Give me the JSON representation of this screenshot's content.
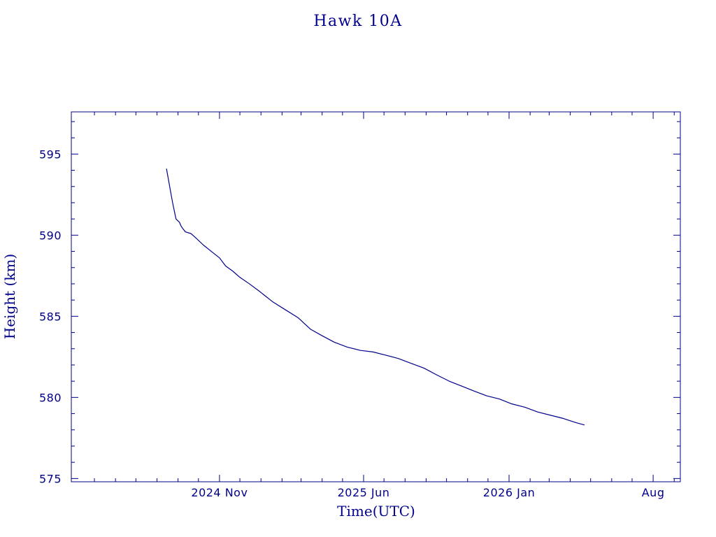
{
  "colors": {
    "ink": "#00008b",
    "background": "#ffffff"
  },
  "chart_data": {
    "type": "line",
    "title": "Hawk 10A",
    "xlabel": "Time(UTC)",
    "ylabel": "Height (km)",
    "x_scale": "date",
    "xlim": [
      "2024-03-28",
      "2026-09-10"
    ],
    "ylim": [
      574.8,
      597.6
    ],
    "x_ticks": [
      {
        "date": "2024-11-01",
        "label": "2024 Nov"
      },
      {
        "date": "2025-06-01",
        "label": "2025 Jun"
      },
      {
        "date": "2026-01-01",
        "label": "2026 Jan"
      },
      {
        "date": "2026-08-01",
        "label": "Aug"
      }
    ],
    "x_minor_ticks": [
      "2024-05-01",
      "2024-06-01",
      "2024-07-01",
      "2024-08-01",
      "2024-09-01",
      "2024-10-01",
      "2024-11-01",
      "2024-12-01",
      "2025-01-01",
      "2025-02-01",
      "2025-03-01",
      "2025-04-01",
      "2025-05-01",
      "2025-06-01",
      "2025-07-01",
      "2025-08-01",
      "2025-09-01",
      "2025-10-01",
      "2025-11-01",
      "2025-12-01",
      "2026-01-01",
      "2026-02-01",
      "2026-03-01",
      "2026-04-01",
      "2026-05-01",
      "2026-06-01",
      "2026-07-01",
      "2026-08-01",
      "2026-09-01"
    ],
    "x_major_every_months": 7,
    "y_ticks": [
      575,
      580,
      585,
      590,
      595
    ],
    "y_minor_step": 1,
    "grid": false,
    "legend": "none",
    "series": [
      {
        "x": [
          "2024-08-15",
          "2024-08-24",
          "2024-08-29",
          "2024-09-03",
          "2024-09-05",
          "2024-09-08",
          "2024-09-12",
          "2024-09-20",
          "2024-09-28",
          "2024-10-08",
          "2024-10-20",
          "2024-11-01",
          "2024-11-10",
          "2024-11-20",
          "2024-12-01",
          "2024-12-15",
          "2024-12-31",
          "2025-01-18",
          "2025-02-06",
          "2025-02-25",
          "2025-03-15",
          "2025-04-01",
          "2025-04-19",
          "2025-05-08",
          "2025-05-27",
          "2025-06-15",
          "2025-07-04",
          "2025-07-22",
          "2025-08-10",
          "2025-08-29",
          "2025-09-16",
          "2025-10-05",
          "2025-10-23",
          "2025-11-10",
          "2025-11-29",
          "2025-12-18",
          "2026-01-05",
          "2026-01-24",
          "2026-02-12",
          "2026-03-03",
          "2026-03-22",
          "2026-04-09",
          "2026-04-22"
        ],
        "y": [
          594.1,
          592.0,
          591.0,
          590.8,
          590.6,
          590.4,
          590.2,
          590.1,
          589.8,
          589.4,
          589.0,
          588.6,
          588.1,
          587.8,
          587.4,
          587.0,
          586.5,
          585.9,
          585.4,
          584.9,
          584.2,
          583.8,
          583.4,
          583.1,
          582.9,
          582.8,
          582.6,
          582.4,
          582.1,
          581.8,
          581.4,
          581.0,
          580.7,
          580.4,
          580.1,
          579.9,
          579.6,
          579.4,
          579.1,
          578.9,
          578.7,
          578.45,
          578.3
        ]
      }
    ]
  }
}
